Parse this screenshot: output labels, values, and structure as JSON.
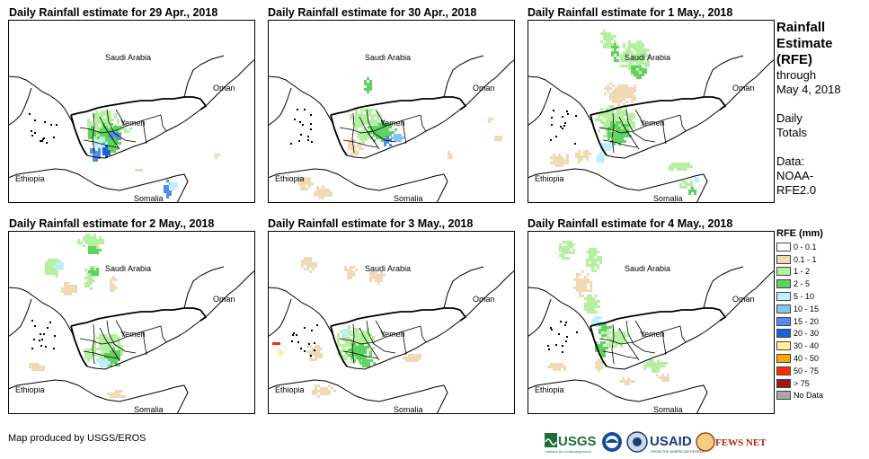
{
  "panels": [
    {
      "title": "Daily Rainfall estimate for 29 Apr., 2018"
    },
    {
      "title": "Daily Rainfall estimate for 30 Apr., 2018"
    },
    {
      "title": "Daily Rainfall estimate for 1 May., 2018"
    },
    {
      "title": "Daily Rainfall estimate for 2 May., 2018"
    },
    {
      "title": "Daily Rainfall estimate for 3 May., 2018"
    },
    {
      "title": "Daily Rainfall estimate for 4 May., 2018"
    }
  ],
  "map_labels": {
    "saudi": "Saudi Arabia",
    "oman": "Oman",
    "yemen": "Yemen",
    "ethiopia": "Ethiopia",
    "somalia": "Somalia"
  },
  "sidebar": {
    "title1": "Rainfall",
    "title2": "Estimate",
    "title3": "(RFE)",
    "sub1": "through",
    "sub2": "May 4, 2018",
    "totals1": "Daily",
    "totals2": "Totals",
    "data1": "Data:",
    "data2": "NOAA-",
    "data3": "RFE2.0"
  },
  "legend": {
    "title": "RFE (mm)",
    "items": [
      {
        "label": "0 - 0.1",
        "color": "#ffffff"
      },
      {
        "label": "0.1 - 1",
        "color": "#f0d9b5"
      },
      {
        "label": "1 - 2",
        "color": "#b5f0a0"
      },
      {
        "label": "2 - 5",
        "color": "#5fd35f"
      },
      {
        "label": "5 - 10",
        "color": "#bfefff"
      },
      {
        "label": "10 - 15",
        "color": "#87c4f4"
      },
      {
        "label": "15 - 20",
        "color": "#4f8fe8"
      },
      {
        "label": "20 - 30",
        "color": "#1f5fd8"
      },
      {
        "label": "30 - 40",
        "color": "#fff0a0"
      },
      {
        "label": "40 - 50",
        "color": "#ffa500"
      },
      {
        "label": "50 - 75",
        "color": "#ff2a00"
      },
      {
        "label": "> 75",
        "color": "#a01818"
      },
      {
        "label": "No Data",
        "color": "#a8a8a8"
      }
    ]
  },
  "credit": "Map produced by USGS/EROS",
  "logos": {
    "usgs": "USGS",
    "usgs_tagline": "science for a changing world",
    "usaid": "USAID",
    "usaid_tagline": "FROM THE AMERICAN PEOPLE",
    "fewsnet": "FEWS NET"
  }
}
